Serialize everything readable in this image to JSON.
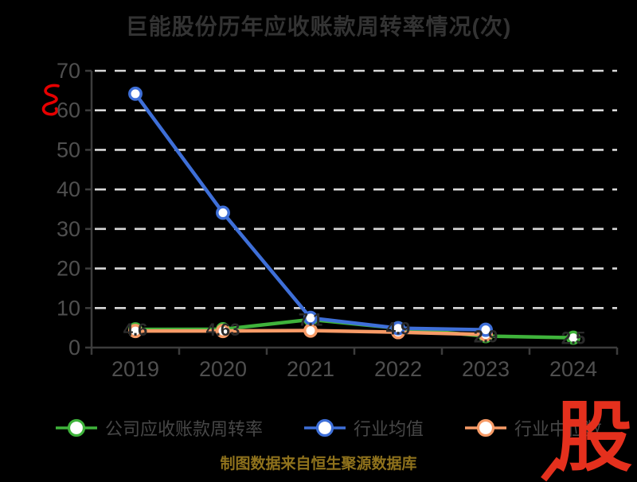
{
  "page": {
    "background": "#000000"
  },
  "colors": {
    "title": "#333333",
    "axis": "#3c3c3c",
    "tick_label": "#4f4f4f",
    "grid": "#d9d9d9",
    "point_label": "#2b2b2b",
    "legend_text": "#474747",
    "caption": "#8f721c",
    "logo_red": "#e5301d",
    "scribble_red": "#e60000",
    "marker_fill": "#ffffff"
  },
  "caption": "制图数据来自恒生聚源数据库",
  "logo": {
    "text": "股"
  },
  "annotation": {
    "name": "red-scribble"
  },
  "chart_data": {
    "type": "line",
    "title": "巨能股份历年应收账款周转率情况(次)",
    "xlabel": "",
    "ylabel": "",
    "categories": [
      "2019",
      "2020",
      "2021",
      "2022",
      "2023",
      "2024"
    ],
    "series": [
      {
        "name": "公司应收账款周转率",
        "color": "#3fb33b",
        "values": [
          4.6,
          4.63,
          7.1,
          4.9,
          2.9,
          2.5
        ],
        "labels": [
          "4.6",
          "4.63",
          "7.1",
          "4.9",
          "2.9",
          "2.5"
        ]
      },
      {
        "name": "行业均值",
        "color": "#3e6fd8",
        "values": [
          64.2,
          34.1,
          7.5,
          4.9,
          4.5,
          null
        ]
      },
      {
        "name": "行业中位数",
        "color": "#f79b67",
        "values": [
          4.2,
          4.2,
          4.3,
          3.9,
          3.3,
          null
        ]
      }
    ],
    "ylim": [
      0,
      70
    ],
    "yticks": [
      0,
      10,
      20,
      30,
      40,
      50,
      60,
      70
    ],
    "grid": "horizontal-dashed",
    "legend_position": "bottom"
  }
}
